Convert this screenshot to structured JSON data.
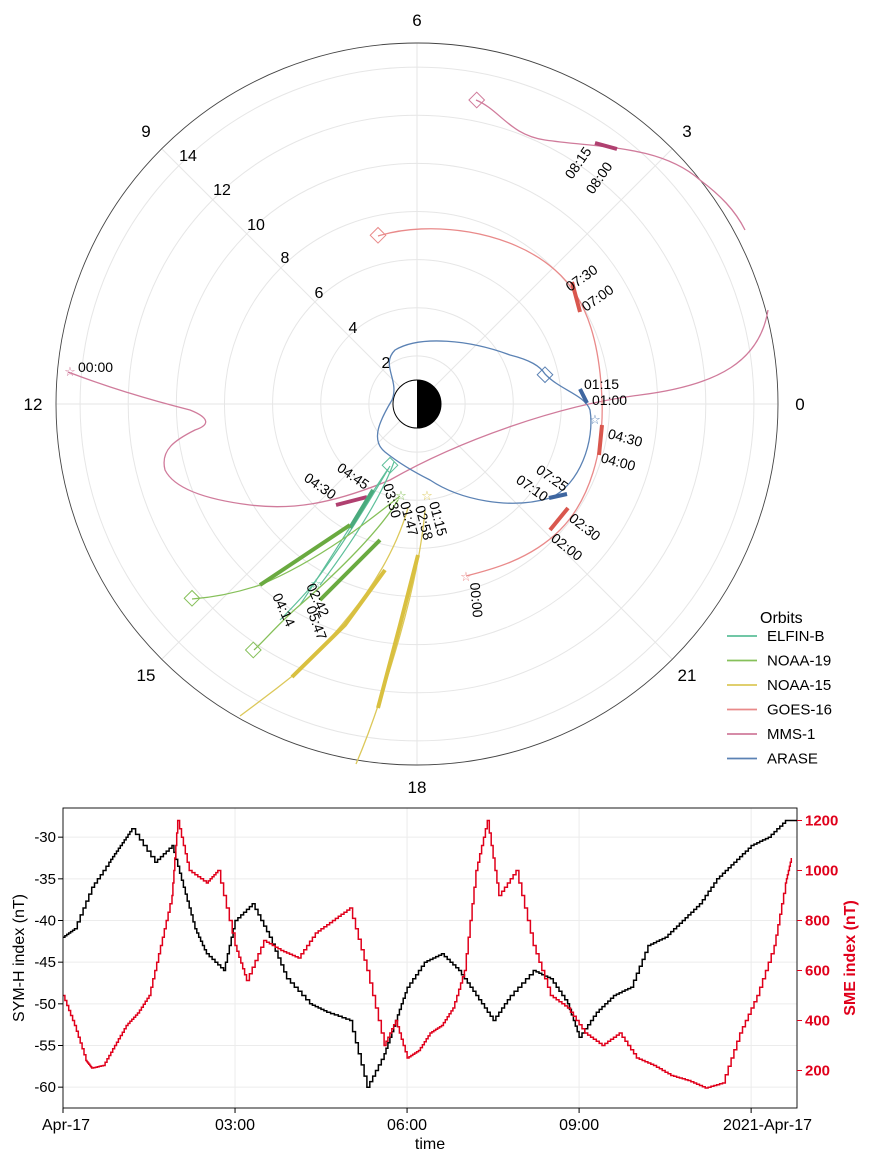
{
  "chart_data": [
    {
      "type": "polar-orbit",
      "mlt_ticks": [
        {
          "label": "0",
          "hour": 0
        },
        {
          "label": "3",
          "hour": 3
        },
        {
          "label": "6",
          "hour": 6
        },
        {
          "label": "9",
          "hour": 9
        },
        {
          "label": "12",
          "hour": 12
        },
        {
          "label": "15",
          "hour": 15
        },
        {
          "label": "18",
          "hour": 18
        },
        {
          "label": "21",
          "hour": 21
        }
      ],
      "radial_ticks": [
        "2",
        "4",
        "6",
        "8",
        "10",
        "12",
        "14"
      ],
      "rmax": 15,
      "legend": {
        "title": "Orbits",
        "placement": "bottom-right",
        "entries": [
          {
            "name": "ELFIN-B",
            "color": "#5dbf9a"
          },
          {
            "name": "NOAA-19",
            "color": "#86c05a"
          },
          {
            "name": "NOAA-15",
            "color": "#dcc85a"
          },
          {
            "name": "GOES-16",
            "color": "#e98a8a"
          },
          {
            "name": "MMS-1",
            "color": "#d07b9b"
          },
          {
            "name": "ARASE",
            "color": "#5b82b4"
          }
        ]
      },
      "annotations": [
        "00:00",
        "08:15",
        "08:00",
        "07:30",
        "07:00",
        "01:15",
        "01:00",
        "04:30",
        "04:00",
        "07:25",
        "07:10",
        "02:30",
        "02:00",
        "00:00",
        "04:45",
        "04:30",
        "03:30",
        "01:47",
        "02:58",
        "01:15",
        "02:42",
        "04:14",
        "05:47"
      ]
    },
    {
      "type": "line",
      "xlabel": "time",
      "x_ticks": [
        "Apr-17",
        "03:00",
        "06:00",
        "09:00",
        "2021-Apr-17"
      ],
      "xlim": [
        0,
        12.8
      ],
      "y_left": {
        "label": "SYM-H index (nT)",
        "ticks": [
          "-30",
          "-35",
          "-40",
          "-45",
          "-50",
          "-55",
          "-60"
        ],
        "ylim": [
          -62.5,
          -26.5
        ]
      },
      "y_right": {
        "label": "SME index (nT)",
        "ticks": [
          "200",
          "400",
          "600",
          "800",
          "1000",
          "1200"
        ],
        "ylim": [
          50,
          1250
        ]
      },
      "grid": true,
      "series": [
        {
          "name": "SYM-H index (nT)",
          "axis": "left",
          "color": "#000000",
          "x": [
            0,
            0.2,
            0.5,
            0.8,
            1.0,
            1.2,
            1.6,
            1.9,
            2.1,
            2.3,
            2.5,
            2.8,
            3.0,
            3.3,
            3.6,
            3.9,
            4.3,
            4.6,
            5.0,
            5.3,
            5.6,
            5.8,
            6.0,
            6.3,
            6.6,
            6.9,
            7.2,
            7.5,
            7.8,
            8.2,
            8.5,
            8.8,
            9.0,
            9.3,
            9.6,
            9.9,
            10.2,
            10.5,
            10.8,
            11.1,
            11.4,
            11.7,
            12.0,
            12.3,
            12.6,
            12.8
          ],
          "y": [
            -42,
            -41,
            -36,
            -33,
            -31,
            -29,
            -33,
            -31,
            -36,
            -41,
            -44,
            -46,
            -40,
            -38,
            -42,
            -47,
            -50,
            -51,
            -52,
            -60,
            -56,
            -52,
            -48,
            -45,
            -44,
            -46,
            -49,
            -52,
            -49,
            -46,
            -47,
            -50,
            -54,
            -51,
            -49,
            -48,
            -43,
            -42,
            -40,
            -38,
            -35,
            -33,
            -31,
            -30,
            -28,
            -28
          ]
        },
        {
          "name": "SME index (nT)",
          "axis": "right",
          "color": "#e0001b",
          "x": [
            0,
            0.2,
            0.4,
            0.5,
            0.7,
            0.9,
            1.1,
            1.3,
            1.5,
            1.7,
            1.9,
            2.0,
            2.2,
            2.5,
            2.7,
            3.0,
            3.2,
            3.5,
            3.8,
            4.1,
            4.4,
            4.7,
            5.0,
            5.3,
            5.6,
            5.8,
            6.0,
            6.2,
            6.4,
            6.6,
            6.8,
            7.0,
            7.2,
            7.4,
            7.6,
            7.9,
            8.2,
            8.5,
            8.8,
            9.1,
            9.4,
            9.7,
            10.0,
            10.3,
            10.6,
            10.9,
            11.2,
            11.5,
            11.8,
            12.1,
            12.4,
            12.6,
            12.7
          ],
          "y": [
            500,
            380,
            240,
            210,
            220,
            300,
            380,
            430,
            500,
            700,
            900,
            1200,
            1000,
            950,
            1000,
            700,
            560,
            720,
            680,
            650,
            750,
            800,
            850,
            600,
            300,
            400,
            250,
            280,
            350,
            380,
            450,
            600,
            1000,
            1200,
            900,
            1000,
            700,
            500,
            450,
            350,
            300,
            350,
            250,
            220,
            180,
            160,
            130,
            150,
            350,
            500,
            700,
            950,
            1050
          ]
        }
      ]
    }
  ]
}
